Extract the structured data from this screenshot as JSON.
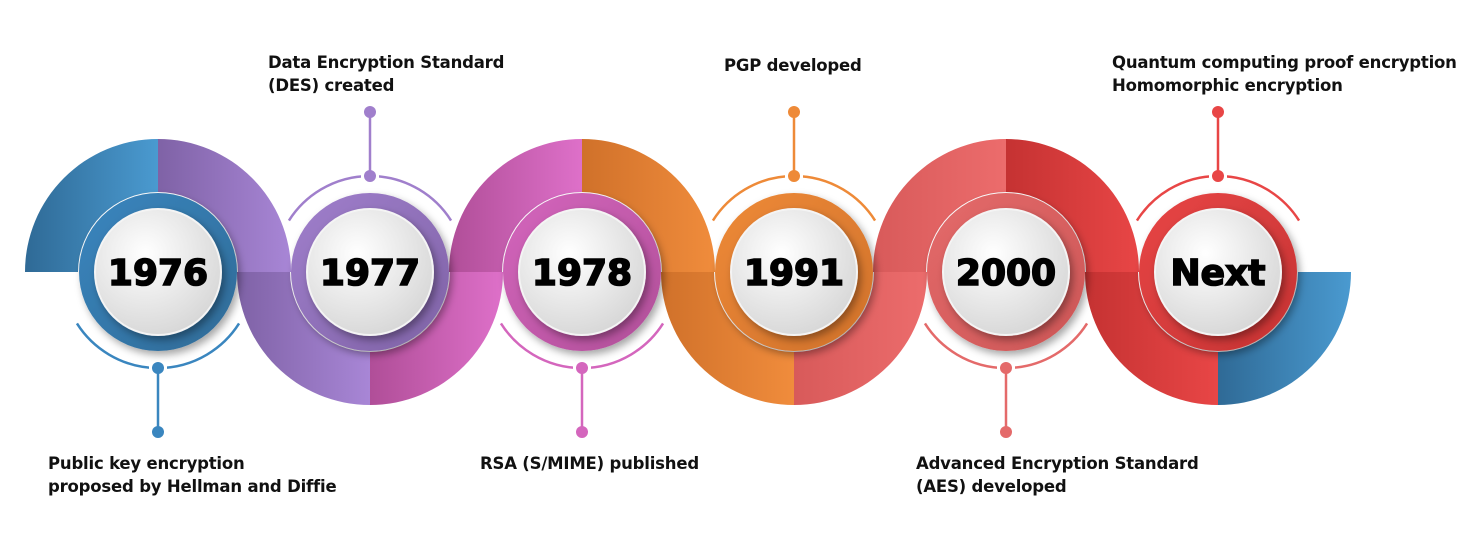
{
  "milestones": [
    {
      "year": "1976",
      "position": "bottom",
      "color": "#3a86bf",
      "dark": "#2f6a96",
      "lines": [
        "Public key encryption",
        "proposed by Hellman and Diffie"
      ]
    },
    {
      "year": "1977",
      "position": "top",
      "color": "#a07fcc",
      "dark": "#7f62a6",
      "lines": [
        "Data Encryption Standard",
        "(DES) created"
      ]
    },
    {
      "year": "1978",
      "position": "bottom",
      "color": "#d466bd",
      "dark": "#b04e98",
      "lines": [
        "RSA (S/MIME) published"
      ]
    },
    {
      "year": "1991",
      "position": "top",
      "color": "#ee8a38",
      "dark": "#d0712a",
      "lines": [
        "PGP developed"
      ]
    },
    {
      "year": "2000",
      "position": "bottom",
      "color": "#e46a6a",
      "dark": "#cc5656",
      "lines": [
        "Advanced Encryption Standard",
        "(AES) developed"
      ]
    },
    {
      "year": "Next",
      "position": "top",
      "color": "#e84646",
      "dark": "#c53232",
      "lines": [
        "Quantum computing proof encryption",
        "Homomorphic encryption"
      ]
    }
  ],
  "band_colors": [
    [
      "#2f6a96",
      "#4a9ad0"
    ],
    [
      "#7f62a6",
      "#a886d6"
    ],
    [
      "#b04e98",
      "#de70c9"
    ],
    [
      "#d0712a",
      "#f08c3c"
    ],
    [
      "#d85a5a",
      "#ec6c6c"
    ],
    [
      "#c53232",
      "#e84646"
    ],
    [
      "#2f6a96",
      "#4a9ad0"
    ]
  ]
}
